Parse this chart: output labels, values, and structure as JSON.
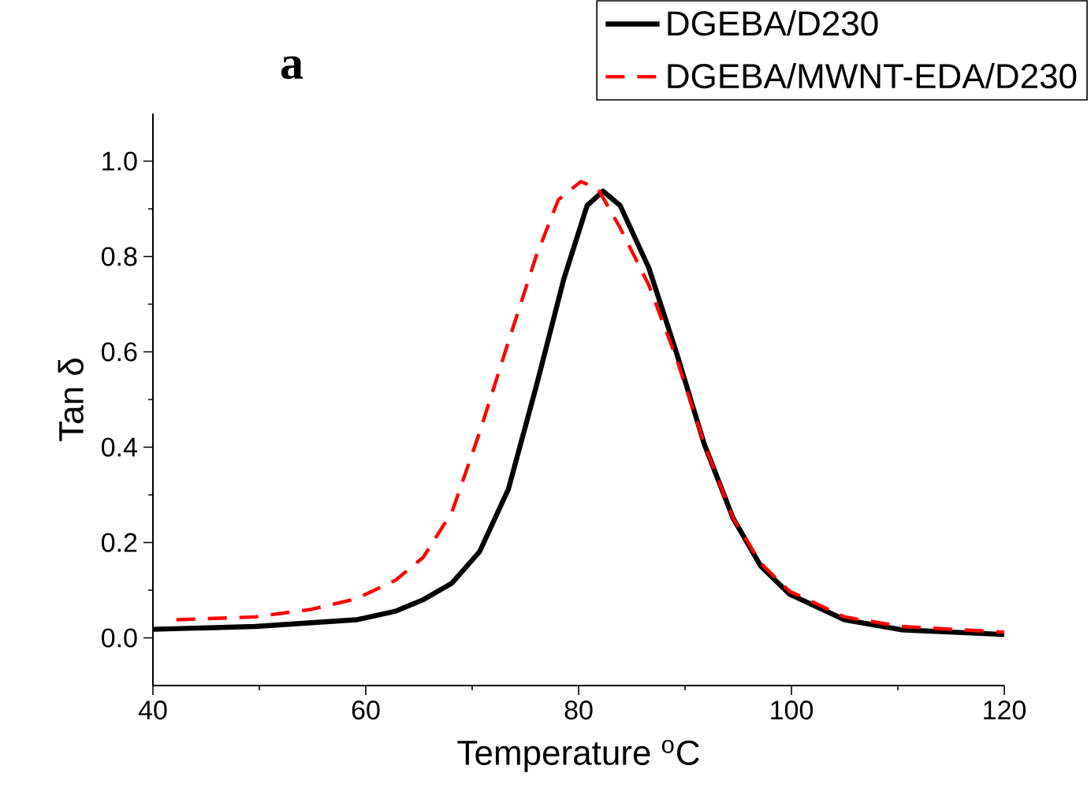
{
  "chart_data": {
    "type": "line",
    "title": "a",
    "xlabel": "Temperature $^{o}$C",
    "ylabel": "Tan δ",
    "xlim": [
      40,
      120
    ],
    "ylim": [
      -0.1,
      1.1
    ],
    "xticks": [
      40,
      60,
      80,
      100,
      120
    ],
    "yticks": [
      {
        "value": 0,
        "label": "0.0"
      },
      {
        "value": 0.2,
        "label": "0.2"
      },
      {
        "value": 0.4,
        "label": "0.4"
      },
      {
        "value": 0.6,
        "label": "0.6"
      },
      {
        "value": 0.8,
        "label": "0.8"
      },
      {
        "value": 1.0,
        "label": "1.0"
      }
    ],
    "legend": "top right",
    "grid": false,
    "series": [
      {
        "name": "DGEBA/D230",
        "color": "#000000",
        "line_style": "solid",
        "x": [
          40,
          49.6,
          59.1,
          62.8,
          65.4,
          68.1,
          70.7,
          73.4,
          76.0,
          78.6,
          80.8,
          82.3,
          83.9,
          86.6,
          89.2,
          91.8,
          94.5,
          97.1,
          99.8,
          105.0,
          110.3,
          120
        ],
        "values": [
          0.018,
          0.024,
          0.038,
          0.056,
          0.08,
          0.115,
          0.181,
          0.312,
          0.526,
          0.752,
          0.907,
          0.937,
          0.907,
          0.776,
          0.598,
          0.407,
          0.252,
          0.151,
          0.092,
          0.038,
          0.017,
          0.007
        ]
      },
      {
        "name": "DGEBA/MWNT-EDA/D230",
        "color": "#ff0000",
        "line_style": "dashed",
        "x": [
          42.2,
          49.6,
          54.9,
          59.1,
          62.8,
          65.4,
          68.1,
          70.7,
          73.4,
          76.0,
          78.1,
          80.2,
          81.8,
          83.9,
          86.6,
          89.2,
          91.8,
          94.5,
          97.1,
          99.8,
          105.0,
          110.3,
          120
        ],
        "values": [
          0.038,
          0.044,
          0.06,
          0.082,
          0.121,
          0.169,
          0.264,
          0.431,
          0.621,
          0.8,
          0.919,
          0.957,
          0.943,
          0.86,
          0.74,
          0.586,
          0.407,
          0.252,
          0.157,
          0.098,
          0.044,
          0.024,
          0.012
        ]
      }
    ]
  }
}
